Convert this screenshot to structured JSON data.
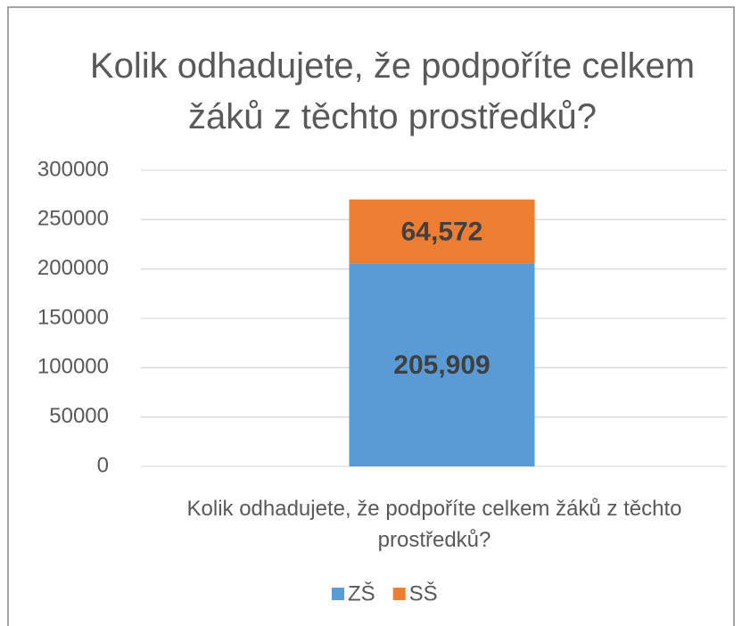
{
  "chart_data": {
    "type": "stacked_bar",
    "title": "Kolik odhadujete, že podpoříte celkem žáků z těchto prostředků?",
    "categories": [
      "Kolik odhadujete, že podpoříte celkem žáků z těchto prostředků?"
    ],
    "series": [
      {
        "name": "ZŠ",
        "color": "#5b9bd5",
        "values": [
          205909
        ],
        "value_labels": [
          "205,909"
        ]
      },
      {
        "name": "SŠ",
        "color": "#ed7d31",
        "values": [
          64572
        ],
        "value_labels": [
          "64,572"
        ]
      }
    ],
    "ylim": [
      0,
      300000
    ],
    "yticks": [
      0,
      50000,
      100000,
      150000,
      200000,
      250000,
      300000
    ],
    "grid": true,
    "legend": "bottom"
  }
}
